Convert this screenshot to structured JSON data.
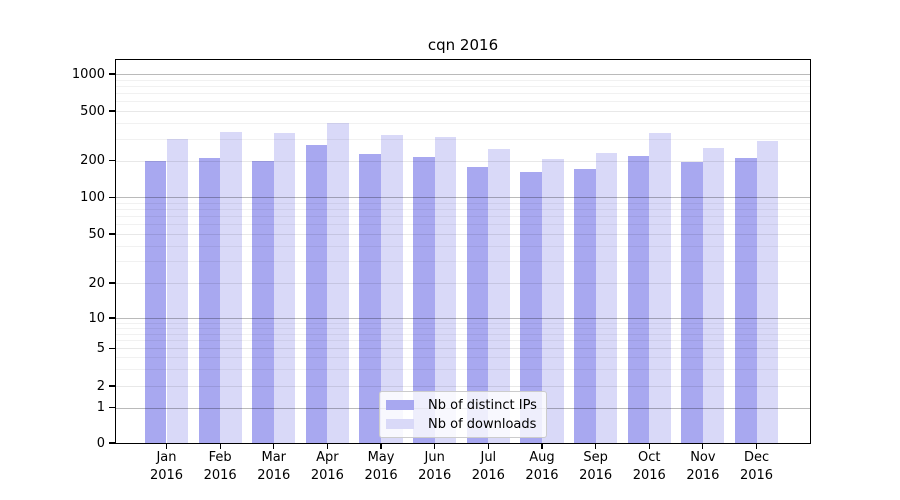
{
  "title": "cqn 2016",
  "chart_data": {
    "type": "bar",
    "title": "cqn 2016",
    "yscale": "symlog",
    "ylim": [
      0,
      1000
    ],
    "yticks": [
      1000,
      500,
      200,
      100,
      50,
      20,
      10,
      5,
      2,
      1,
      0
    ],
    "minor_gridlines": [
      3,
      4,
      6,
      7,
      8,
      9,
      30,
      40,
      60,
      70,
      80,
      90,
      300,
      400,
      600,
      700,
      800,
      900
    ],
    "grid": "both",
    "year": "2016",
    "months": [
      "Jan",
      "Feb",
      "Mar",
      "Apr",
      "May",
      "Jun",
      "Jul",
      "Aug",
      "Sep",
      "Oct",
      "Nov",
      "Dec"
    ],
    "categories": [
      "Jan 2016",
      "Feb 2016",
      "Mar 2016",
      "Apr 2016",
      "May 2016",
      "Jun 2016",
      "Jul 2016",
      "Aug 2016",
      "Sep 2016",
      "Oct 2016",
      "Nov 2016",
      "Dec 2016"
    ],
    "series": [
      {
        "name": "Nb of distinct IPs",
        "key": "distinct-ips",
        "color": "#a8a8f0",
        "values": [
          200,
          210,
          198,
          265,
          226,
          215,
          178,
          160,
          170,
          217,
          195,
          210
        ]
      },
      {
        "name": "Nb of downloads",
        "key": "downloads",
        "color": "#d9d9f8",
        "values": [
          300,
          340,
          335,
          400,
          324,
          310,
          246,
          206,
          230,
          336,
          255,
          290
        ]
      }
    ],
    "legend_position": "lower center",
    "colors": {
      "background": "#ffffff",
      "spine": "#000000",
      "decade_gridline": "#bababa",
      "minor_gridline": "#ededed",
      "legend_border": "#cccccc"
    }
  }
}
